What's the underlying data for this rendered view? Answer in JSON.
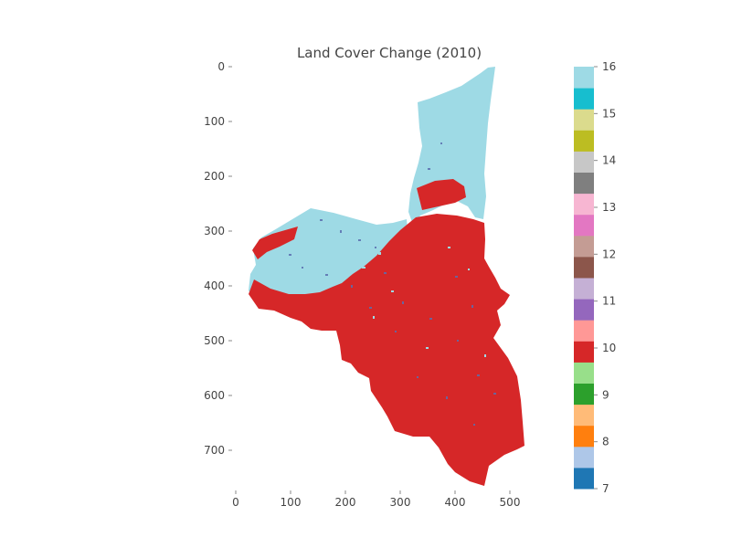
{
  "chart_data": {
    "type": "heatmap",
    "title": "Land Cover Change (2010)",
    "xlabel": "",
    "ylabel": "",
    "x_ticks": [
      0,
      100,
      200,
      300,
      400,
      500
    ],
    "y_ticks": [
      0,
      100,
      200,
      300,
      400,
      500,
      600,
      700
    ],
    "xlim": [
      0,
      560
    ],
    "ylim": [
      0,
      775
    ],
    "y_axis_inverted": true,
    "grid": false,
    "colorbar": {
      "placement": "right",
      "min": 7,
      "max": 16,
      "ticks": [
        7,
        8,
        9,
        10,
        11,
        12,
        13,
        14,
        15,
        16
      ],
      "colors": [
        "#1f77b4",
        "#aec7e8",
        "#ff7f0e",
        "#ffbb78",
        "#2ca02c",
        "#98df8a",
        "#d62728",
        "#ff9896",
        "#9467bd",
        "#c5b0d5",
        "#8c564b",
        "#c49c94",
        "#e377c2",
        "#f7b6d2",
        "#7f7f7f",
        "#c7c7c7",
        "#bcbd22",
        "#dbdb8d",
        "#17becf",
        "#9edae5"
      ]
    },
    "classes_present": [
      {
        "value": 16,
        "color": "#9edae5"
      },
      {
        "value": 10,
        "color": "#d62728"
      },
      {
        "value": 11,
        "color": "#5a6fb0"
      }
    ]
  }
}
